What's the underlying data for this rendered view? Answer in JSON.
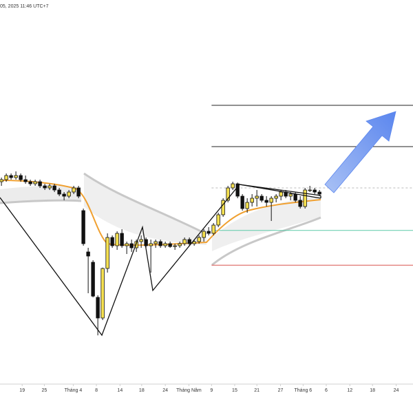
{
  "chart_data": {
    "type": "candlestick",
    "subtitle": "05, 2025 11:46 UTC+7",
    "xlim": [
      -0.3,
      85.4
    ],
    "ylim": [
      0,
      100
    ],
    "xticks": [
      {
        "value": 4.3,
        "label": "19"
      },
      {
        "value": 8.9,
        "label": "25"
      },
      {
        "value": 14.9,
        "label": "Tháng 4"
      },
      {
        "value": 19.7,
        "label": "8"
      },
      {
        "value": 24.6,
        "label": "14"
      },
      {
        "value": 29.1,
        "label": "18"
      },
      {
        "value": 34,
        "label": "24"
      },
      {
        "value": 38.9,
        "label": "Tháng Năm"
      },
      {
        "value": 43.6,
        "label": "9"
      },
      {
        "value": 48.4,
        "label": "15"
      },
      {
        "value": 53,
        "label": "21"
      },
      {
        "value": 57.9,
        "label": "27"
      },
      {
        "value": 62.6,
        "label": "Tháng 6"
      },
      {
        "value": 67.4,
        "label": "6"
      },
      {
        "value": 72.3,
        "label": "12"
      },
      {
        "value": 77,
        "label": "18"
      },
      {
        "value": 81.9,
        "label": "24"
      }
    ],
    "up_color": "#f5e050",
    "down_color": "#111111",
    "levels_start": 43.6,
    "levels": [
      {
        "value": 74.5,
        "color": "#222222"
      },
      {
        "value": 64.5,
        "color": "#222222"
      },
      {
        "value": 54.5,
        "color": "#bbbbbb"
      },
      {
        "value": 44.2,
        "color": "#5cc9a7"
      },
      {
        "value": 35.8,
        "color": "#d9534f"
      }
    ],
    "candles": [
      [
        56,
        57,
        55,
        56.5
      ],
      [
        56.5,
        58,
        56,
        57.5
      ],
      [
        57.5,
        58,
        56.5,
        57
      ],
      [
        57,
        58.5,
        56.5,
        57.5
      ],
      [
        57.5,
        58,
        56,
        56.5
      ],
      [
        56.5,
        57.5,
        55.5,
        56
      ],
      [
        56,
        56.5,
        55,
        55.5
      ],
      [
        55.5,
        56.5,
        55,
        56
      ],
      [
        56,
        56.5,
        54.5,
        55
      ],
      [
        55,
        55.5,
        54,
        54.5
      ],
      [
        54.5,
        55.5,
        54,
        55
      ],
      [
        55,
        55.5,
        53.5,
        54
      ],
      [
        54,
        54.5,
        52.5,
        53
      ],
      [
        53,
        53.5,
        51.5,
        52.5
      ],
      [
        52.5,
        54,
        52,
        53.5
      ],
      [
        53.5,
        55,
        53,
        54.5
      ],
      [
        54.5,
        55,
        52,
        52.5
      ],
      [
        49,
        49.5,
        40.5,
        41
      ],
      [
        39,
        40,
        29,
        38
      ],
      [
        36.5,
        37,
        28,
        28.3
      ],
      [
        28,
        28.5,
        18.8,
        23
      ],
      [
        23,
        35.2,
        22.5,
        35
      ],
      [
        35,
        43.5,
        34,
        42.5
      ],
      [
        42.5,
        43,
        40,
        40.5
      ],
      [
        40.5,
        44,
        39.5,
        43.5
      ],
      [
        43.5,
        44.5,
        40,
        40.5
      ],
      [
        40.5,
        41.5,
        38.5,
        41
      ],
      [
        41,
        42,
        39,
        40
      ],
      [
        40,
        42,
        39,
        41.5
      ],
      [
        41.5,
        43,
        40,
        42
      ],
      [
        42,
        42.5,
        40,
        40.5
      ],
      [
        40.5,
        42,
        34,
        41
      ],
      [
        41,
        42,
        40,
        41.5
      ],
      [
        41.5,
        42,
        40,
        40.5
      ],
      [
        40.5,
        41.5,
        40,
        41
      ],
      [
        41,
        41.5,
        40,
        40.3
      ],
      [
        40.3,
        41,
        39.5,
        40.5
      ],
      [
        40.5,
        41.5,
        40,
        41
      ],
      [
        41,
        42.5,
        40.5,
        42
      ],
      [
        42,
        42.5,
        40.5,
        41
      ],
      [
        41,
        42,
        40.5,
        41.5
      ],
      [
        41.5,
        43,
        41,
        42.5
      ],
      [
        42.5,
        44.5,
        41.5,
        44
      ],
      [
        44,
        45,
        43,
        43.5
      ],
      [
        43.5,
        46,
        43,
        45.5
      ],
      [
        45.5,
        48.5,
        45,
        48
      ],
      [
        48,
        52,
        47.5,
        51.5
      ],
      [
        51.5,
        55,
        51,
        54.5
      ],
      [
        54.5,
        56,
        54,
        55.5
      ],
      [
        55.5,
        55.8,
        52,
        52.5
      ],
      [
        52.5,
        53,
        49,
        49.5
      ],
      [
        49.5,
        52,
        48.5,
        51
      ],
      [
        51,
        53,
        50,
        52
      ],
      [
        52,
        54,
        50,
        52.5
      ],
      [
        52.5,
        53,
        51,
        51.5
      ],
      [
        51.5,
        52.5,
        50,
        51
      ],
      [
        51,
        52.5,
        46.5,
        52
      ],
      [
        52,
        53,
        51,
        52.5
      ],
      [
        52.5,
        54,
        51.5,
        53.5
      ],
      [
        53.5,
        54,
        52,
        52.5
      ],
      [
        52.5,
        53.5,
        51.5,
        53
      ],
      [
        53,
        53.5,
        51,
        51.5
      ],
      [
        51.5,
        52.5,
        49.5,
        50
      ],
      [
        50,
        54.5,
        49.5,
        54
      ],
      [
        54,
        55,
        53.5,
        54
      ],
      [
        54,
        54.5,
        53,
        53.5
      ],
      [
        53.5,
        54,
        52.5,
        53
      ]
    ]
  }
}
